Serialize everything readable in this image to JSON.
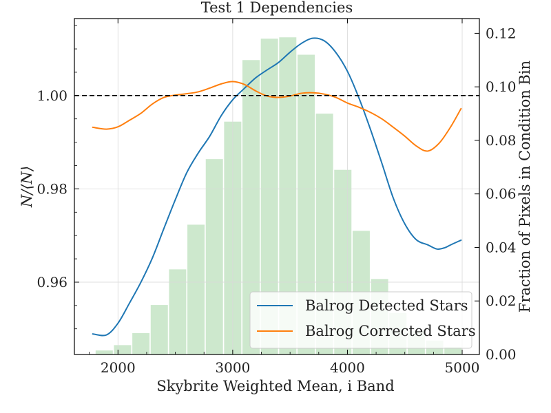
{
  "chart_data": {
    "type": "line",
    "title": "Test 1 Dependencies",
    "xlabel": "Skybrite Weighted Mean, i Band",
    "ylabel_left": "N/⟨N⟩",
    "ylabel_right": "Fraction of Pixels in Condition Bin",
    "xlim": [
      1620,
      5150
    ],
    "ylim_left": [
      0.9445,
      1.0165
    ],
    "ylim_right": [
      0.0,
      0.1255
    ],
    "x_ticks": [
      2000,
      3000,
      4000,
      5000
    ],
    "x_tick_labels": [
      "2000",
      "3000",
      "4000",
      "5000"
    ],
    "y_left_ticks": [
      0.96,
      0.98,
      1.0
    ],
    "y_left_tick_labels": [
      "0.96",
      "0.98",
      "1.00"
    ],
    "y_right_ticks": [
      0.0,
      0.02,
      0.04,
      0.06,
      0.08,
      0.1,
      0.12
    ],
    "y_right_tick_labels": [
      "0.00",
      "0.02",
      "0.04",
      "0.06",
      "0.08",
      "0.10",
      "0.12"
    ],
    "reference_line": 1.0,
    "grid": true,
    "legend_position": "lower-right",
    "histogram": {
      "color": "#2ca02c",
      "bin_width": 150,
      "x": [
        1880,
        2040,
        2200,
        2360,
        2520,
        2680,
        2840,
        3000,
        3160,
        3320,
        3480,
        3640,
        3800,
        3960,
        4120,
        4280,
        4440,
        4600,
        4760,
        4920
      ],
      "values": [
        0.0015,
        0.0035,
        0.008,
        0.0185,
        0.0318,
        0.0485,
        0.073,
        0.087,
        0.11,
        0.118,
        0.1185,
        0.112,
        0.09,
        0.069,
        0.0462,
        0.0282,
        0.0155,
        0.0088,
        0.0052,
        0.0028
      ]
    },
    "series": [
      {
        "name": "Balrog Detected Stars",
        "color": "#1f77b4",
        "x": [
          1780,
          1900,
          2000,
          2100,
          2200,
          2300,
          2400,
          2500,
          2600,
          2700,
          2800,
          2900,
          3000,
          3100,
          3200,
          3300,
          3400,
          3500,
          3600,
          3700,
          3800,
          3900,
          4000,
          4100,
          4200,
          4300,
          4400,
          4500,
          4600,
          4700,
          4780,
          4850,
          4900,
          4990
        ],
        "y": [
          0.9489,
          0.9487,
          0.9512,
          0.9555,
          0.96,
          0.9652,
          0.9715,
          0.9777,
          0.9835,
          0.9877,
          0.9913,
          0.9957,
          0.9991,
          1.0015,
          1.0038,
          1.0055,
          1.0071,
          1.0093,
          1.0112,
          1.0123,
          1.0117,
          1.0092,
          1.0052,
          0.9995,
          0.9928,
          0.9855,
          0.978,
          0.9725,
          0.9691,
          0.968,
          0.9671,
          0.9674,
          0.968,
          0.969
        ]
      },
      {
        "name": "Balrog Corrected Stars",
        "color": "#ff7f0e",
        "x": [
          1780,
          1900,
          2000,
          2100,
          2200,
          2300,
          2400,
          2500,
          2600,
          2700,
          2800,
          2900,
          3000,
          3100,
          3200,
          3300,
          3400,
          3500,
          3600,
          3700,
          3800,
          3900,
          4000,
          4100,
          4200,
          4300,
          4400,
          4500,
          4600,
          4700,
          4800,
          4900,
          4990
        ],
        "y": [
          0.9932,
          0.9928,
          0.9933,
          0.9947,
          0.9962,
          0.9982,
          0.9996,
          1.0001,
          1.0004,
          1.0008,
          1.0016,
          1.0025,
          1.003,
          1.0024,
          1.001,
          0.9999,
          0.9996,
          0.9999,
          1.0005,
          1.0006,
          1.0003,
          0.9996,
          0.9984,
          0.9975,
          0.9964,
          0.995,
          0.9932,
          0.9913,
          0.9892,
          0.9881,
          0.9898,
          0.9933,
          0.9972
        ]
      }
    ]
  }
}
